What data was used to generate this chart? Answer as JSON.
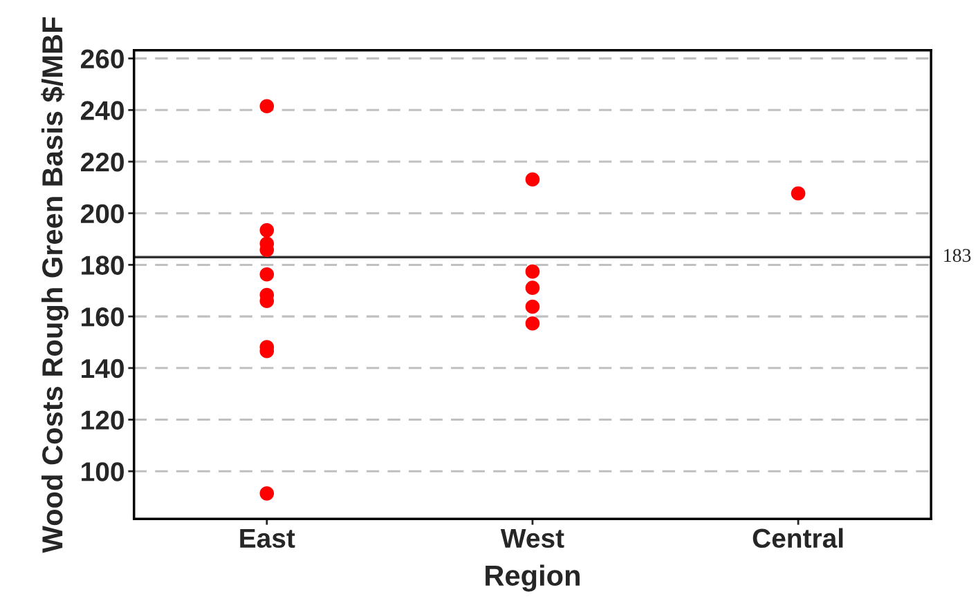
{
  "chart_data": {
    "type": "scatter",
    "xlabel": "Region",
    "ylabel": "Wood Costs Rough Green Basis $/MBF",
    "categories": [
      "East",
      "West",
      "Central"
    ],
    "series": [
      {
        "color": "#ff0000",
        "x": [
          "East",
          "East",
          "East",
          "East",
          "East",
          "East",
          "East",
          "East",
          "East",
          "East",
          "West",
          "West",
          "West",
          "West",
          "West",
          "Central"
        ],
        "values": [
          241.5,
          193.4,
          188.2,
          185.8,
          176.3,
          168.3,
          166,
          148.1,
          146.6,
          91.4,
          213.1,
          177.4,
          171.1,
          163.8,
          157.3,
          207.7
        ]
      }
    ],
    "ylim": [
      81.5,
      263.2
    ],
    "yticks": [
      100,
      120,
      140,
      160,
      180,
      200,
      220,
      240,
      260
    ],
    "grid": "y",
    "marker": "circle",
    "ref_lines": [
      {
        "axis": "y",
        "value": 183,
        "label": "183",
        "color": "#333333",
        "line_style": "solid"
      }
    ]
  }
}
